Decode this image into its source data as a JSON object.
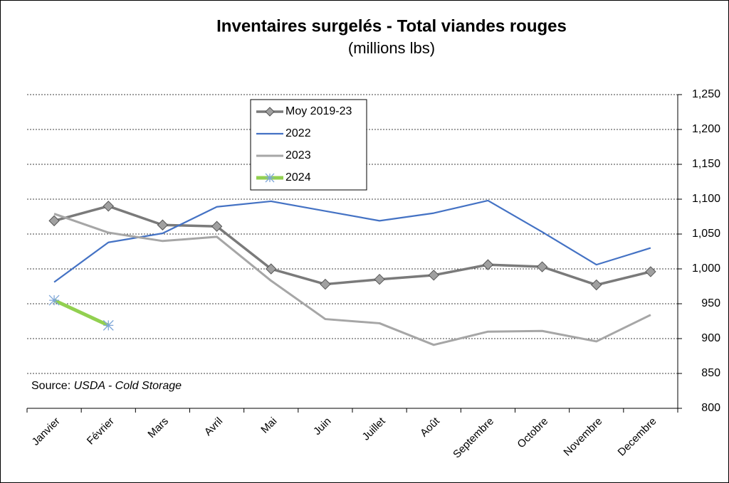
{
  "chart_data": {
    "type": "line",
    "title": "Inventaires surgelés - Total viandes rouges",
    "subtitle": "(millions lbs)",
    "source_label": "Source:",
    "source_text": "USDA - Cold Storage",
    "categories": [
      "Janvier",
      "Février",
      "Mars",
      "Avril",
      "Mai",
      "Juin",
      "Juillet",
      "Août",
      "Septembre",
      "Octobre",
      "Novembre",
      "Decembre"
    ],
    "series": [
      {
        "name": "Moy 2019-23",
        "color": "#7a7a7a",
        "marker": "diamond",
        "values": [
          1069,
          1090,
          1063,
          1061,
          1000,
          978,
          985,
          991,
          1006,
          1003,
          977,
          996
        ]
      },
      {
        "name": "2022",
        "color": "#4472c4",
        "values": [
          981,
          1038,
          1051,
          1089,
          1097,
          1083,
          1069,
          1080,
          1098,
          1053,
          1006,
          1030
        ]
      },
      {
        "name": "2023",
        "color": "#a6a6a6",
        "values": [
          1079,
          1052,
          1040,
          1046,
          983,
          928,
          922,
          891,
          910,
          911,
          896,
          934
        ]
      },
      {
        "name": "2024",
        "color": "#92d050",
        "marker": "star",
        "values": [
          955,
          919,
          null,
          null,
          null,
          null,
          null,
          null,
          null,
          null,
          null,
          null
        ]
      }
    ],
    "ylim": [
      800,
      1250
    ],
    "yticks": [
      800,
      850,
      900,
      950,
      {
        "value": 1000,
        "label": "1,000"
      },
      {
        "value": 1050,
        "label": "1,050"
      },
      {
        "value": 1100,
        "label": "1,100"
      },
      {
        "value": 1150,
        "label": "1,150"
      },
      {
        "value": 1200,
        "label": "1,200"
      },
      {
        "value": 1250,
        "label": "1,250"
      }
    ],
    "grid": true
  }
}
